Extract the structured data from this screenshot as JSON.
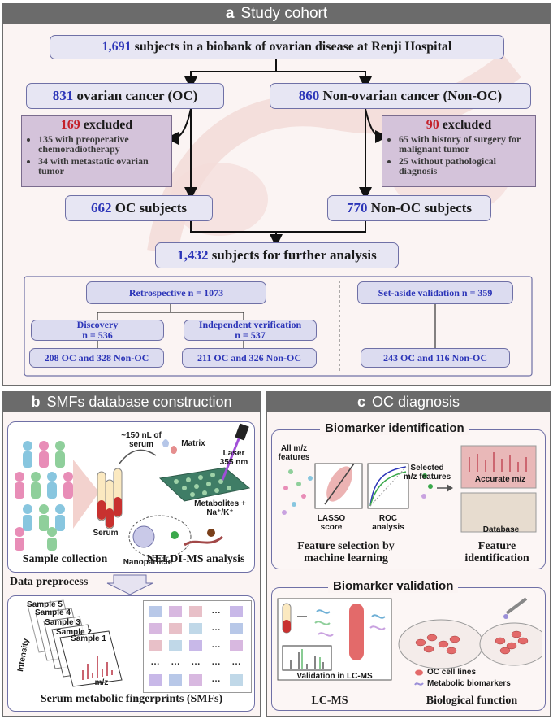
{
  "panel_a": {
    "letter": "a",
    "title": "Study cohort",
    "biobank": {
      "count": "1,691",
      "text": "subjects in a biobank of ovarian disease at Renji Hospital"
    },
    "oc": {
      "count": "831",
      "text": "ovarian cancer (OC)"
    },
    "nonoc": {
      "count": "860",
      "text": "Non-ovarian cancer (Non-OC)"
    },
    "oc_excluded": {
      "count": "169",
      "word": "excluded",
      "items": [
        "135 with preoperative chemoradiotherapy",
        "34 with metastatic ovarian tumor"
      ]
    },
    "nonoc_excluded": {
      "count": "90",
      "word": "excluded",
      "items": [
        "65 with history of surgery for malignant tumor",
        "25 without pathological diagnosis"
      ]
    },
    "oc_subjects": {
      "count": "662",
      "text": "OC subjects"
    },
    "nonoc_subjects": {
      "count": "770",
      "text": "Non-OC subjects"
    },
    "further": {
      "count": "1,432",
      "text": "subjects for further analysis"
    },
    "retrospective": "Retrospective n = 1073",
    "setaside": "Set-aside validation n = 359",
    "discovery": {
      "line1": "Discovery",
      "line2": "n = 536"
    },
    "verification": {
      "line1": "Independent verification",
      "line2": "n = 537"
    },
    "discovery_split": "208 OC and 328 Non-OC",
    "verification_split": "211 OC and 326 Non-OC",
    "setaside_split": "243 OC and 116 Non-OC"
  },
  "panel_b": {
    "letter": "b",
    "title": "SMFs database construction",
    "serum_volume": "~150 nL of serum",
    "matrix": "Matrix",
    "laser": "Laser 355 nm",
    "serum": "Serum",
    "metabolites": "Metabolites + Na⁺/K⁺",
    "nanoparticle": "Nanoparticle",
    "sample_collection": "Sample collection",
    "neldi": "NELDI-MS analysis",
    "data_preprocess": "Data preprocess",
    "samples": [
      "Sample 5",
      "Sample 4",
      "Sample 3",
      "Sample 2",
      "Sample 1"
    ],
    "intensity": "Intensity",
    "mz": "m/z",
    "ellipsis": "…",
    "smfs": "Serum metabolic fingerprints (SMFs)"
  },
  "panel_c": {
    "letter": "c",
    "title": "OC diagnosis",
    "identification_title": "Biomarker identification",
    "all_features": "All m/z features",
    "lasso": "LASSO score",
    "roc": "ROC analysis",
    "selected_features": "Selected m/z features",
    "accurate": "Accurate m/z",
    "database": "Database",
    "feature_selection": "Feature selection by machine learning",
    "feature_identification": "Feature identification",
    "validation_title": "Biomarker validation",
    "validation_lcms": "Validation in LC-MS",
    "lcms": "LC-MS",
    "cell_lines": "OC cell lines",
    "metabolic_biomarkers": "Metabolic biomarkers",
    "biological_function": "Biological function"
  },
  "colors": {
    "number_blue": "#2c35b8",
    "excluded_red": "#c4202a",
    "box_fill": "#e7e6f3",
    "header_gray": "#6b6b6b"
  }
}
